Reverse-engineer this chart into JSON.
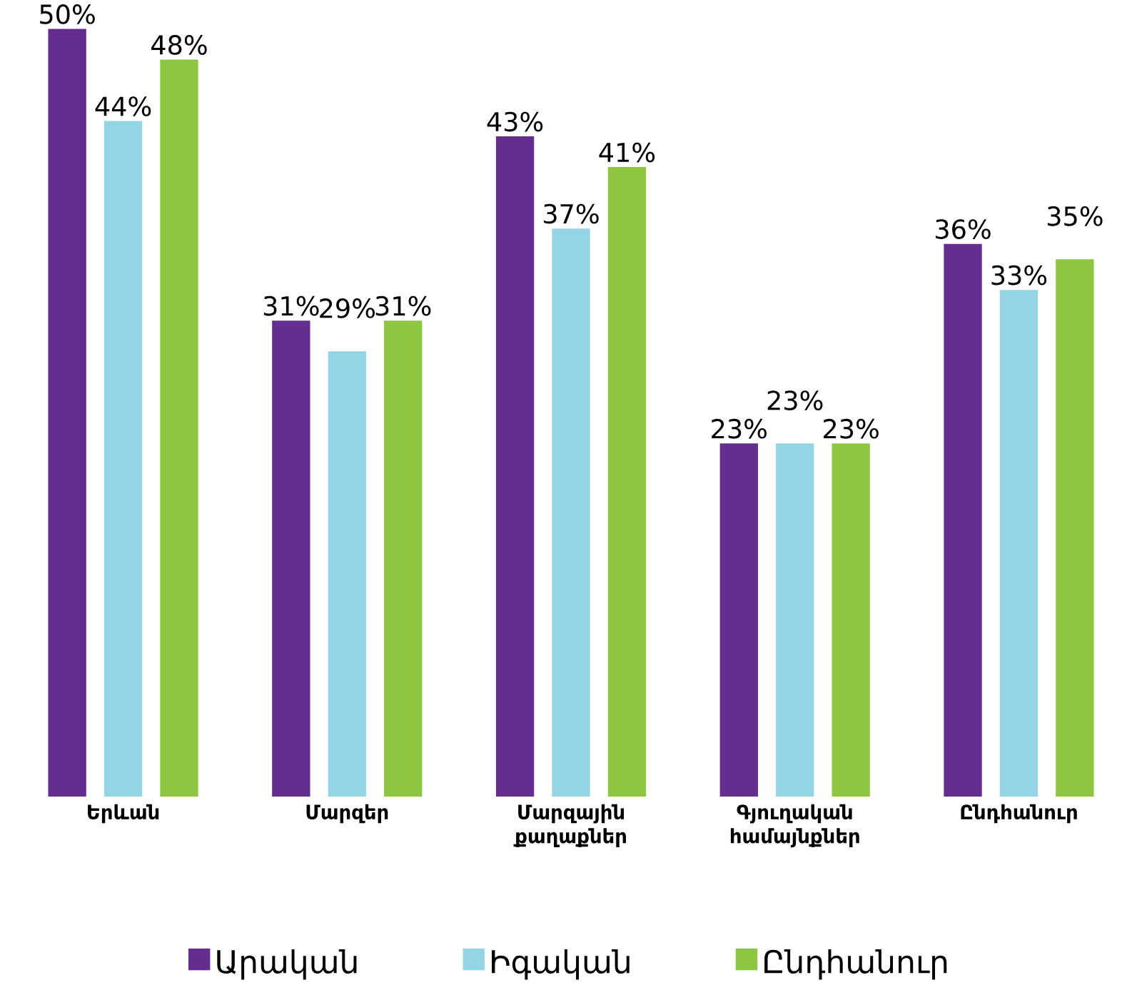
{
  "chart_data": {
    "type": "bar",
    "categories": [
      "Երևան",
      "Մարզեր",
      "Մարզային քաղաքներ",
      "Գյուղական համայնքներ",
      "Ընդհանուր"
    ],
    "series": [
      {
        "name": "Արական",
        "color": "#662d91",
        "values": [
          50,
          31,
          43,
          23,
          36
        ],
        "value_labels": [
          "50%",
          "31%",
          "43%",
          "23%",
          "36%"
        ]
      },
      {
        "name": "Իգական",
        "color": "#93d5e5",
        "values": [
          44,
          29,
          37,
          23,
          33
        ],
        "value_labels": [
          "44%",
          "29%",
          "37%",
          "23%",
          "33%"
        ]
      },
      {
        "name": "Ընդհանուր",
        "color": "#8dc63f",
        "values": [
          48,
          31,
          41,
          23,
          35
        ],
        "value_labels": [
          "48%",
          "31%",
          "41%",
          "23%",
          "35%"
        ]
      }
    ],
    "legend": "bottom"
  }
}
